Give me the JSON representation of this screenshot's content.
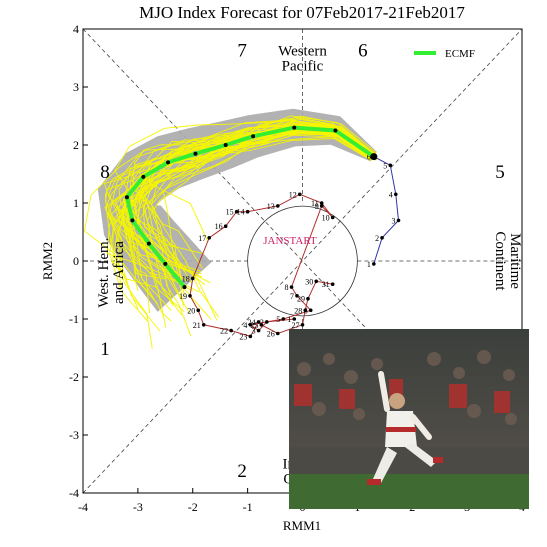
{
  "chart_data": {
    "type": "scatter",
    "title": "MJO Index Forecast for 07Feb2017-21Feb2017",
    "xlabel": "RMM1",
    "ylabel": "RMM2",
    "xlim": [
      -4,
      4
    ],
    "ylim": [
      -4,
      4
    ],
    "xticks": [
      "-4",
      "-3",
      "-2",
      "-1",
      "0",
      "1",
      "2",
      "3",
      "4"
    ],
    "yticks": [
      "-4",
      "-3",
      "-2",
      "-1",
      "0",
      "1",
      "2",
      "3",
      "4"
    ],
    "grid": false,
    "legend": {
      "position": "top-right",
      "entries": [
        {
          "name": "ECMF",
          "color": "#33ee33"
        }
      ]
    },
    "phase_numbers": [
      {
        "label": "7",
        "x": -1.1,
        "y": 3.65
      },
      {
        "label": "6",
        "x": 1.1,
        "y": 3.65
      },
      {
        "label": "8",
        "x": -3.6,
        "y": 1.55
      },
      {
        "label": "5",
        "x": 3.6,
        "y": 1.55
      },
      {
        "label": "1",
        "x": -3.6,
        "y": -1.5
      },
      {
        "label": "2",
        "x": -1.1,
        "y": -3.6
      }
    ],
    "region_labels": [
      {
        "lines": [
          "Western",
          "Pacific"
        ],
        "x": 0.0,
        "y": 3.5,
        "rotate": 0
      },
      {
        "lines": [
          "Maritime",
          "Continent"
        ],
        "x": 3.75,
        "y": 0.0,
        "rotate": 90
      },
      {
        "lines": [
          "West. Hem.",
          "and Africa"
        ],
        "x": -3.5,
        "y": -0.2,
        "rotate": -90
      },
      {
        "lines": [
          "In",
          "O"
        ],
        "x": -0.25,
        "y": -3.62,
        "rotate": 0
      }
    ],
    "center_label": "JANSTART",
    "observed_january": {
      "color": "#b03030",
      "points": [
        {
          "day": "1",
          "x": -0.15,
          "y": -1.0
        },
        {
          "day": "2",
          "x": -0.65,
          "y": -1.05
        },
        {
          "day": "3",
          "x": -0.8,
          "y": -1.2
        },
        {
          "day": "4",
          "x": -0.95,
          "y": -1.1
        },
        {
          "day": "5",
          "x": -0.35,
          "y": -1.0
        },
        {
          "day": "6",
          "x": 0.15,
          "y": -0.85
        },
        {
          "day": "7",
          "x": -0.1,
          "y": -0.6
        },
        {
          "day": "8",
          "x": -0.2,
          "y": -0.45
        },
        {
          "day": "9",
          "x": 0.35,
          "y": 0.95
        },
        {
          "day": "10",
          "x": 0.55,
          "y": 0.75
        },
        {
          "day": "11",
          "x": 0.35,
          "y": 1.0
        },
        {
          "day": "12",
          "x": -0.05,
          "y": 1.15
        },
        {
          "day": "13",
          "x": -0.45,
          "y": 0.95
        },
        {
          "day": "14",
          "x": -1.0,
          "y": 0.85
        },
        {
          "day": "15",
          "x": -1.2,
          "y": 0.85
        },
        {
          "day": "16",
          "x": -1.4,
          "y": 0.6
        },
        {
          "day": "17",
          "x": -1.7,
          "y": 0.4
        },
        {
          "day": "18",
          "x": -2.0,
          "y": -0.3
        },
        {
          "day": "19",
          "x": -2.05,
          "y": -0.6
        },
        {
          "day": "20",
          "x": -1.9,
          "y": -0.85
        },
        {
          "day": "21",
          "x": -1.8,
          "y": -1.1
        },
        {
          "day": "22",
          "x": -1.3,
          "y": -1.2
        },
        {
          "day": "23",
          "x": -0.95,
          "y": -1.3
        },
        {
          "day": "24",
          "x": -0.8,
          "y": -1.05
        },
        {
          "day": "25",
          "x": -0.75,
          "y": -1.1
        },
        {
          "day": "26",
          "x": -0.45,
          "y": -1.25
        },
        {
          "day": "27",
          "x": 0.0,
          "y": -1.1
        },
        {
          "day": "28",
          "x": 0.05,
          "y": -0.85
        },
        {
          "day": "29",
          "x": 0.1,
          "y": -0.65
        },
        {
          "day": "30",
          "x": 0.25,
          "y": -0.35
        },
        {
          "day": "31",
          "x": 0.55,
          "y": -0.4
        }
      ]
    },
    "observed_february": {
      "color": "#3333aa",
      "points": [
        {
          "day": "1",
          "x": 1.3,
          "y": -0.05
        },
        {
          "day": "2",
          "x": 1.45,
          "y": 0.4
        },
        {
          "day": "3",
          "x": 1.75,
          "y": 0.7
        },
        {
          "day": "4",
          "x": 1.7,
          "y": 1.15
        },
        {
          "day": "5",
          "x": 1.6,
          "y": 1.65
        },
        {
          "day": "6",
          "x": 1.3,
          "y": 1.8
        }
      ]
    },
    "forecast_ensemble_mean": {
      "name": "ECMF",
      "color": "#33ee33",
      "x": [
        1.3,
        0.6,
        -0.15,
        -0.9,
        -1.4,
        -1.95,
        -2.45,
        -2.9,
        -3.2,
        -3.1,
        -2.8,
        -2.5,
        -2.15
      ],
      "y": [
        1.8,
        2.25,
        2.3,
        2.15,
        2.0,
        1.85,
        1.7,
        1.45,
        1.1,
        0.7,
        0.3,
        -0.05,
        -0.45
      ]
    },
    "forecast_members": {
      "color": "#f5f500",
      "count": 50
    },
    "forecast_spread": {
      "color": "#aaaaaa"
    }
  }
}
